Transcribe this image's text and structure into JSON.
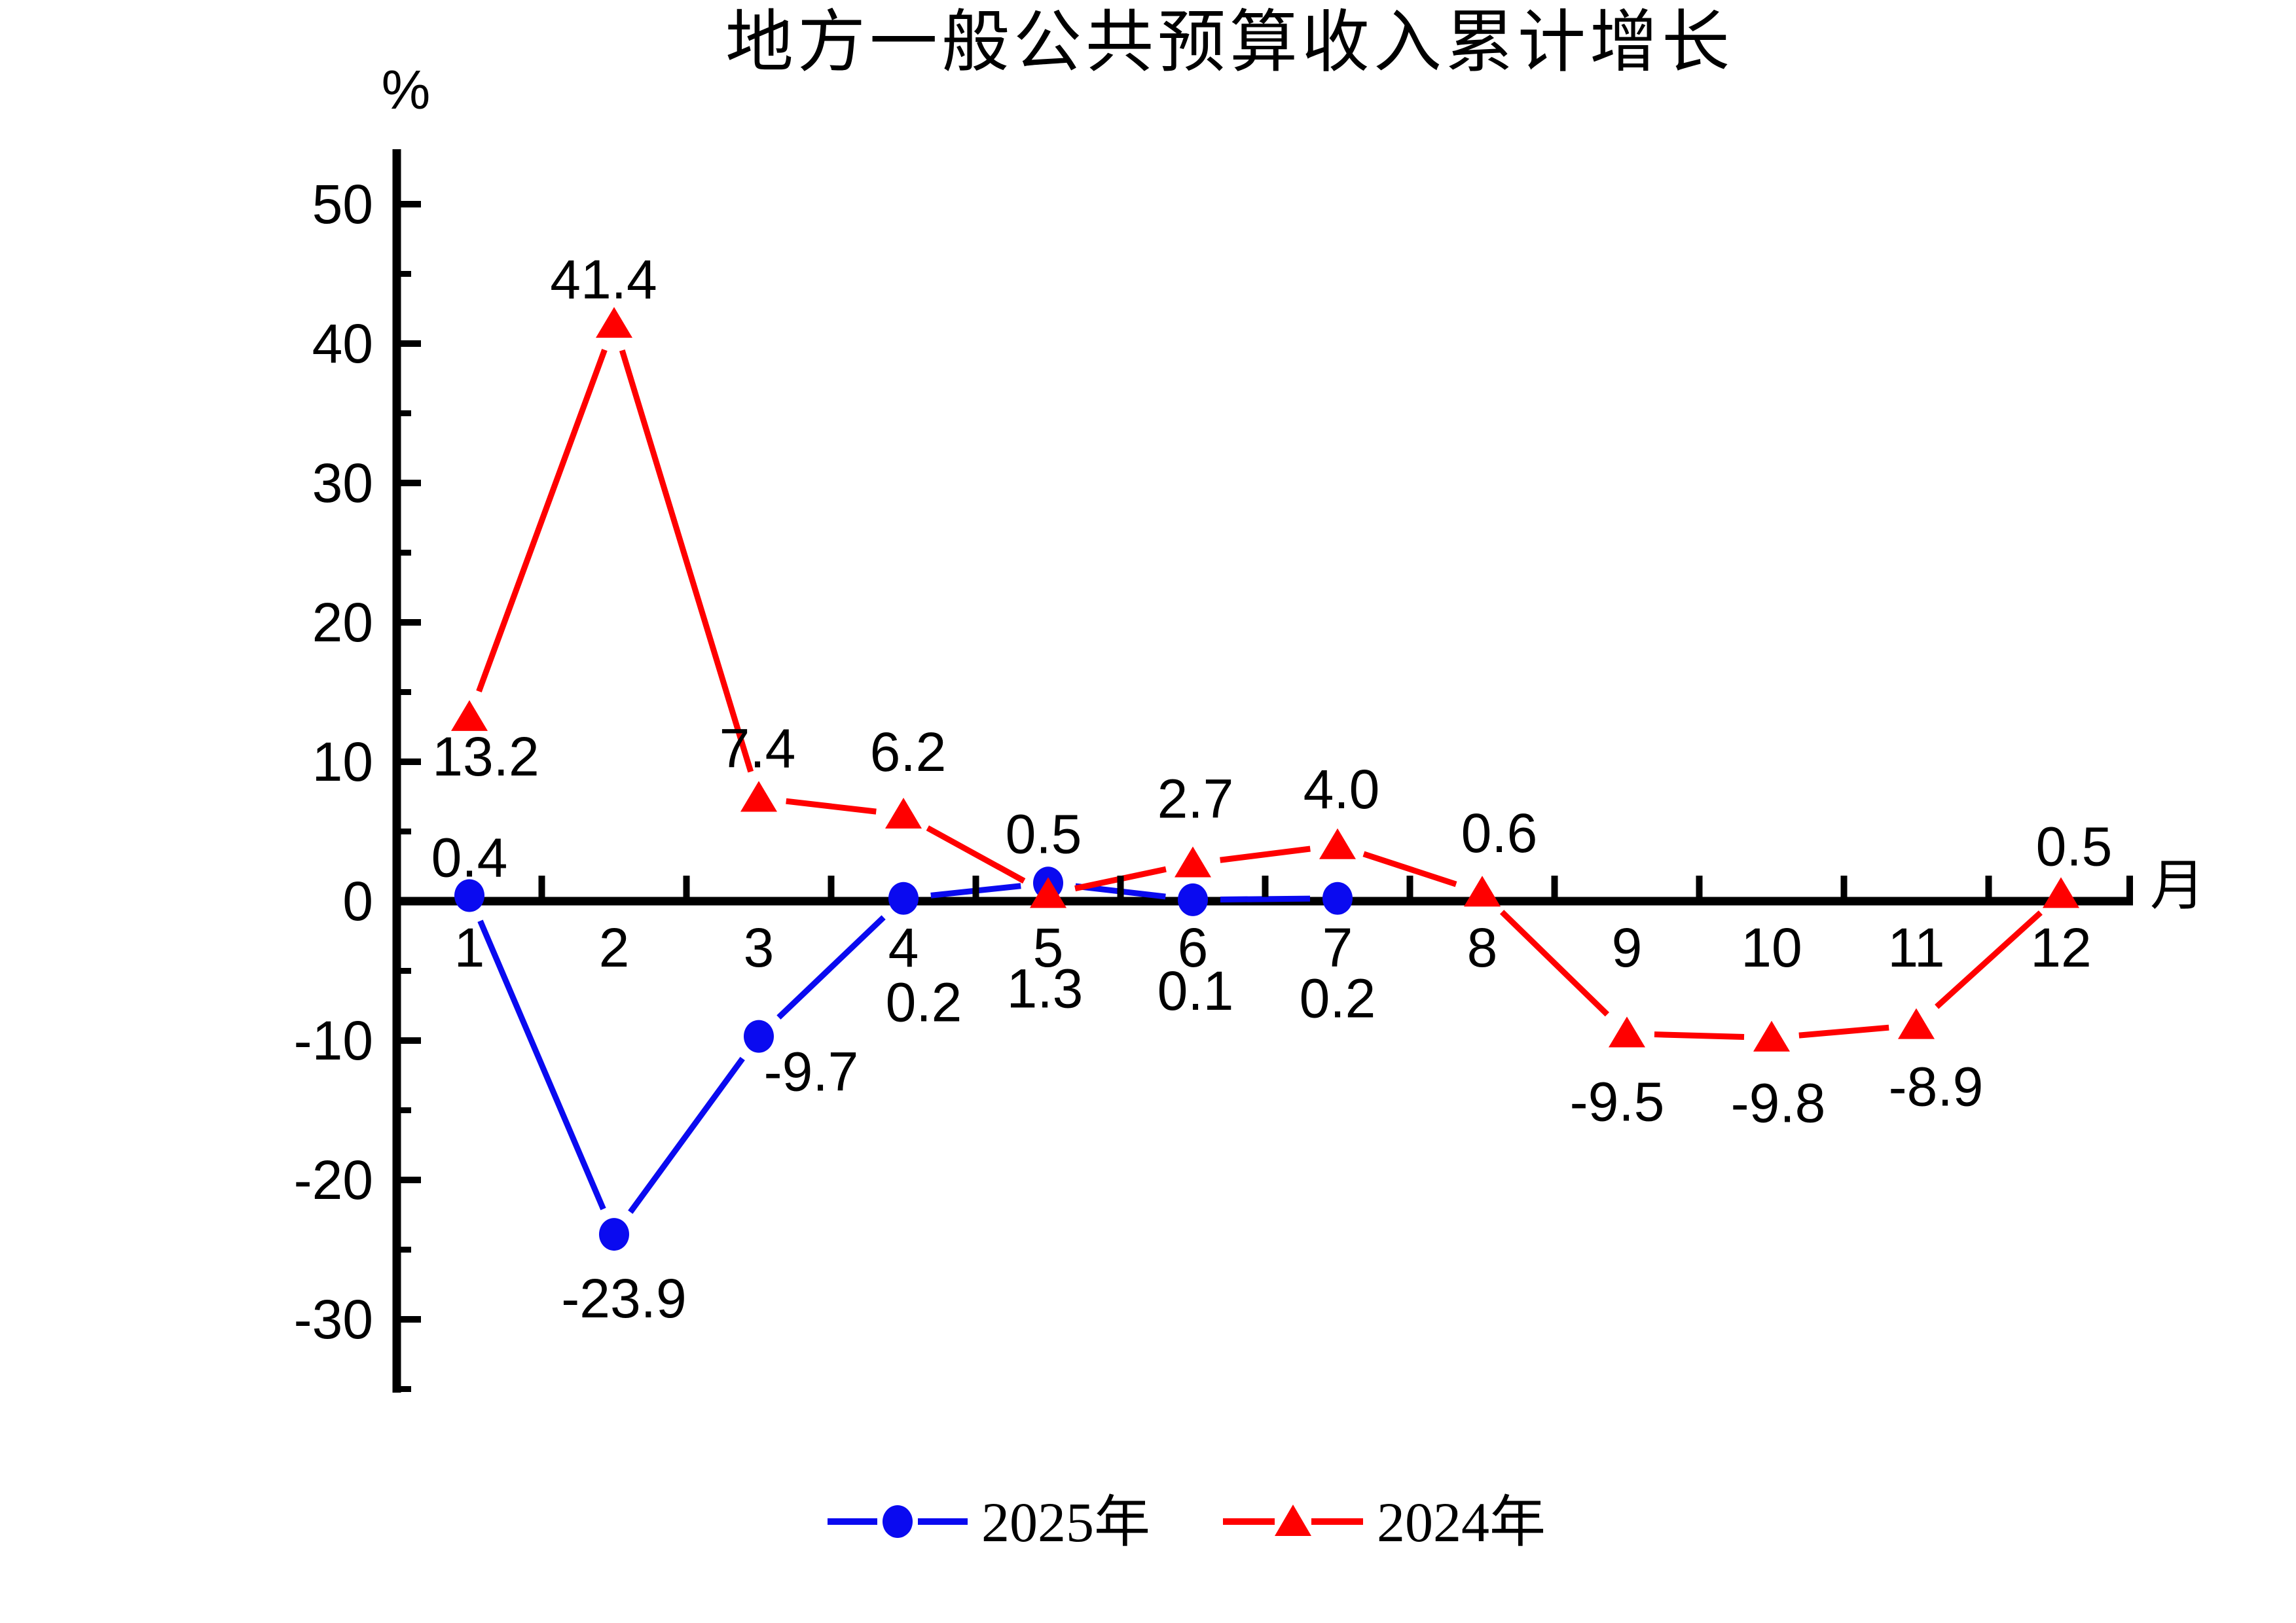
{
  "title": "地方一般公共预算收入累计增长",
  "y_axis": {
    "unit": "%",
    "tick_labels": [
      "50",
      "40",
      "30",
      "20",
      "10",
      "0",
      "-10",
      "-20",
      "-30"
    ],
    "tick_values": [
      50,
      40,
      30,
      20,
      10,
      0,
      -10,
      -20,
      -30
    ],
    "minor_tick_values": [
      45,
      35,
      25,
      15,
      5,
      -5,
      -15,
      -25,
      -35
    ]
  },
  "x_axis": {
    "unit": "月",
    "month_labels": [
      "1",
      "2",
      "3",
      "4",
      "5",
      "6",
      "7",
      "8",
      "9",
      "10",
      "11",
      "12"
    ]
  },
  "legend": {
    "items": [
      {
        "label": "2025年",
        "marker": "circle",
        "color": "#0a0af0"
      },
      {
        "label": "2024年",
        "marker": "triangle",
        "color": "#ff0000"
      }
    ]
  },
  "colors": {
    "series_2025": "#0a0af0",
    "series_2024": "#ff0000",
    "axis": "#000000"
  },
  "chart_data": {
    "type": "line",
    "x": [
      1,
      2,
      3,
      4,
      5,
      6,
      7,
      8,
      9,
      10,
      11,
      12
    ],
    "xlabel": "月",
    "ylabel": "%",
    "ylim": [
      -35,
      54
    ],
    "grid": false,
    "legend_position": "bottom",
    "series": [
      {
        "name": "2025年",
        "marker": "circle",
        "color": "#0a0af0",
        "values": [
          0.4,
          -23.9,
          -9.7,
          0.2,
          1.3,
          0.1,
          0.2
        ],
        "point_labels": [
          "0.4",
          "-23.9",
          "-9.7",
          "0.2",
          "1.3",
          "0.1",
          "0.2"
        ],
        "label_offsets": [
          [
            0,
            -50
          ],
          [
            15,
            106
          ],
          [
            80,
            62
          ],
          [
            31,
            167
          ],
          [
            -5,
            169
          ],
          [
            4,
            147
          ],
          [
            0,
            161
          ]
        ]
      },
      {
        "name": "2024年",
        "marker": "triangle",
        "color": "#ff0000",
        "values": [
          13.2,
          41.4,
          7.4,
          6.2,
          0.5,
          2.7,
          4.0,
          0.6,
          -9.5,
          -9.8,
          -8.9,
          0.5
        ],
        "point_labels": [
          "13.2",
          "41.4",
          "7.4",
          "6.2",
          "0.5",
          "2.7",
          "4.0",
          "0.6",
          "-9.5",
          "-9.8",
          "-8.9",
          "0.5"
        ],
        "label_offsets": [
          [
            25,
            68
          ],
          [
            -16,
            -60
          ],
          [
            -2,
            -68
          ],
          [
            7,
            -88
          ],
          [
            -7,
            -84
          ],
          [
            4,
            -91
          ],
          [
            6,
            -78
          ],
          [
            26,
            -83
          ],
          [
            -15,
            112
          ],
          [
            10,
            108
          ],
          [
            30,
            102
          ],
          [
            20,
            -65
          ]
        ]
      }
    ]
  }
}
